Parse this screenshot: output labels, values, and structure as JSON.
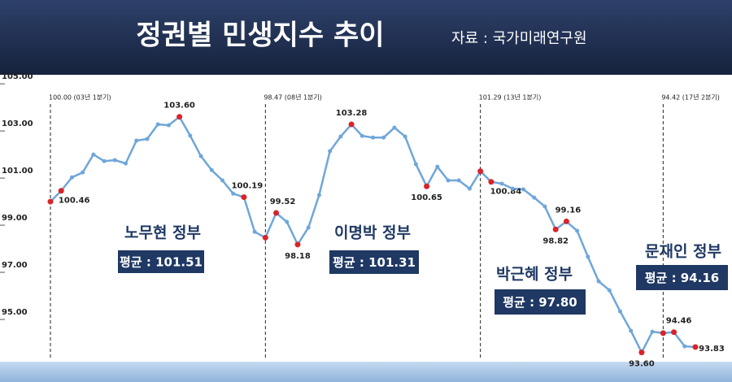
{
  "chart_data": {
    "type": "line",
    "title": "정권별 민생지수 추이",
    "source": "자료 : 국가미래연구원",
    "categories": [
      null,
      null,
      null,
      null,
      null,
      null,
      null,
      null,
      null,
      null,
      null,
      null,
      null,
      null,
      null,
      null,
      null,
      null,
      null,
      null,
      null,
      null,
      null,
      null,
      null,
      null,
      null,
      null,
      null,
      null,
      null,
      null,
      null,
      null,
      null,
      null,
      null,
      null,
      null,
      null,
      null,
      null,
      null,
      null,
      null,
      null,
      null,
      null,
      null,
      null,
      null,
      null,
      null,
      null,
      null,
      null,
      null,
      null,
      null,
      null,
      null
    ],
    "series": [
      {
        "color": "#6fa6da",
        "marker_color": "#d9242a",
        "values": [
          100.0,
          100.46,
          101.03,
          101.24,
          102.0,
          101.72,
          101.76,
          101.62,
          102.59,
          102.66,
          103.28,
          103.24,
          103.6,
          102.8,
          101.93,
          101.34,
          100.9,
          100.34,
          100.19,
          98.72,
          98.47,
          99.52,
          99.14,
          98.18,
          98.9,
          100.28,
          102.14,
          102.76,
          103.28,
          102.79,
          102.72,
          102.72,
          103.14,
          102.76,
          101.59,
          100.65,
          101.48,
          100.9,
          100.9,
          100.55,
          101.29,
          100.84,
          100.76,
          100.55,
          100.52,
          100.17,
          99.79,
          98.82,
          99.16,
          98.76,
          97.66,
          96.62,
          96.24,
          95.34,
          94.52,
          93.6,
          94.48,
          94.42,
          94.46,
          93.86,
          93.83
        ],
        "value_labels": [
          null,
          "100.46",
          null,
          null,
          null,
          null,
          null,
          null,
          null,
          null,
          null,
          null,
          "103.60",
          null,
          null,
          null,
          null,
          null,
          "100.19",
          null,
          null,
          "99.52",
          null,
          "98.18",
          null,
          null,
          null,
          null,
          "103.28",
          null,
          null,
          null,
          null,
          null,
          null,
          "100.65",
          null,
          null,
          null,
          null,
          null,
          "100.84",
          null,
          null,
          null,
          null,
          null,
          "98.82",
          "99.16",
          null,
          null,
          null,
          null,
          null,
          null,
          "93.60",
          null,
          null,
          "94.46",
          null,
          "93.83"
        ]
      }
    ],
    "ylim": [
      93.38,
      105.28
    ],
    "yticks": [
      {
        "value": 105,
        "label": "105.00"
      },
      {
        "value": 103,
        "label": "103.00"
      },
      {
        "value": 101,
        "label": "101.00"
      },
      {
        "value": 99,
        "label": "99.00"
      },
      {
        "value": 97,
        "label": "97.00"
      },
      {
        "value": 95,
        "label": "95.00"
      }
    ],
    "annotations": [
      {
        "index": 0,
        "text": "100.00 (03년 1분기)"
      },
      {
        "index": 20,
        "text": "98.47 (08년 1분기)"
      },
      {
        "index": 40,
        "text": "101.29 (13년 1분기)"
      },
      {
        "index": 57,
        "text": "94.42 (17년 2분기)"
      }
    ],
    "governments": [
      {
        "name": "노무현 정부",
        "average": "평균 : 101.51"
      },
      {
        "name": "이명박 정부",
        "average": "평균 : 101.31"
      },
      {
        "name": "박근혜 정부",
        "average": "평균 : 97.80"
      },
      {
        "name": "문재인 정부",
        "average": "평균 : 94.16"
      }
    ]
  }
}
